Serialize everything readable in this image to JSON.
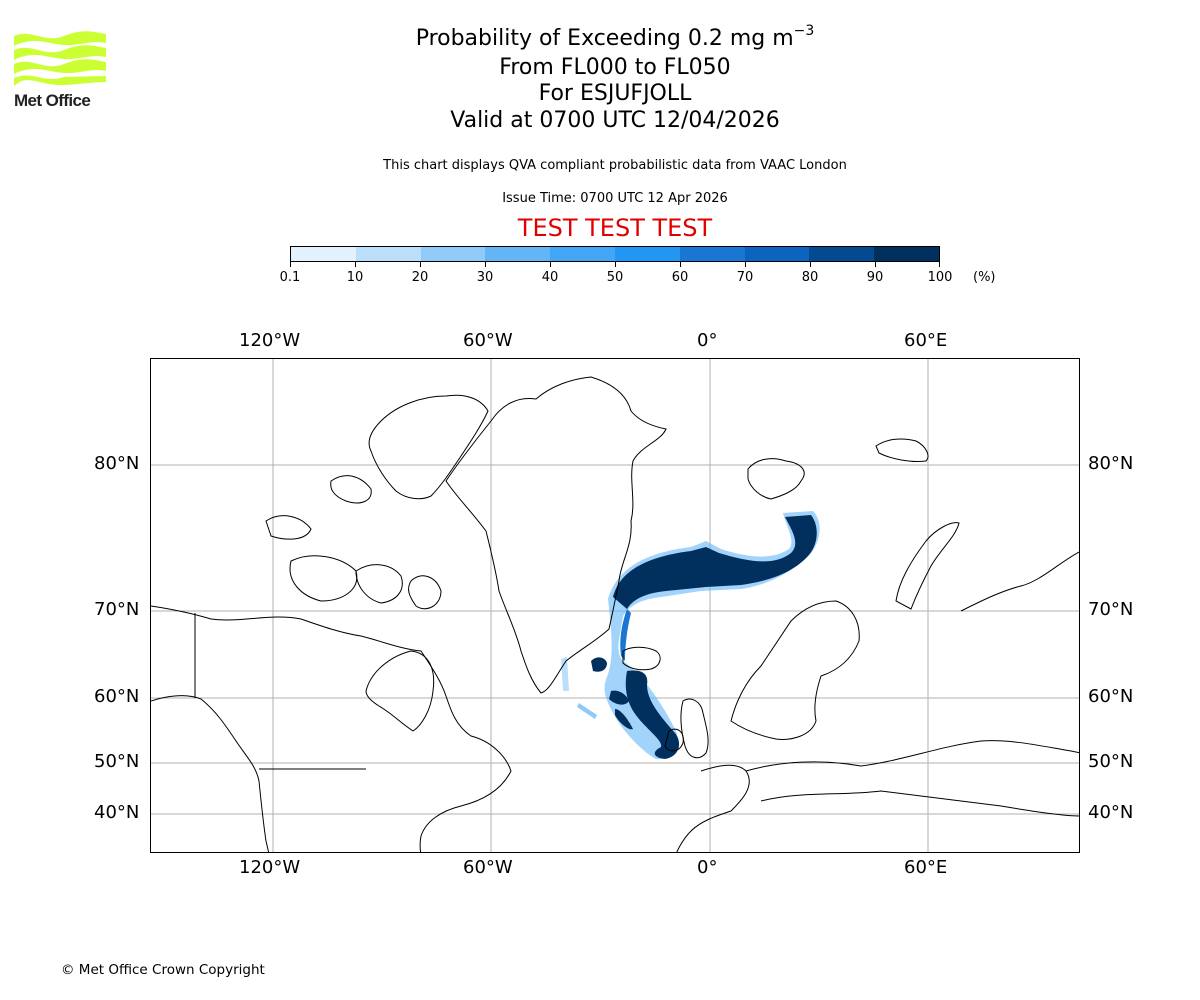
{
  "logo": {
    "text": "Met Office",
    "color": "#ccff33",
    "icon": "met-office-waves-logo"
  },
  "header": {
    "title_main": "Probability of Exceeding 0.2 mg m",
    "title_superscript": "−3",
    "line2": "From FL000 to FL050",
    "line3": "For ESJUFJOLL",
    "line4": "Valid at 0700 UTC 12/04/2026",
    "description": "This chart displays QVA compliant probabilistic data from VAAC London",
    "issue_time": "Issue Time: 0700 UTC 12 Apr 2026",
    "test_banner": "TEST TEST TEST",
    "test_banner_color": "#e00000"
  },
  "colorbar": {
    "ticks": [
      "0.1",
      "10",
      "20",
      "30",
      "40",
      "50",
      "60",
      "70",
      "80",
      "90",
      "100"
    ],
    "unit": "(%)",
    "colors": [
      "#e3f1fd",
      "#bbdefb",
      "#90caf9",
      "#64b5f6",
      "#42a5f5",
      "#2196f3",
      "#1976d2",
      "#0d63c0",
      "#044a90",
      "#02305e"
    ]
  },
  "map": {
    "projection": "Polar stereographic (North Atlantic)",
    "lon_labels": [
      "120°W",
      "60°W",
      "0°",
      "60°E"
    ],
    "lat_labels": [
      "80°N",
      "70°N",
      "60°N",
      "50°N",
      "40°N"
    ],
    "gridline_color": "#b0b0b0",
    "plume_color": "#02305e"
  },
  "footer": {
    "copyright": "© Met Office Crown Copyright"
  },
  "chart_data": {
    "type": "heatmap",
    "title": "Probability of Exceeding 0.2 mg m−3, From FL000 to FL050, For ESJUFJOLL, Valid at 0700 UTC 12/04/2026",
    "subtitle": "This chart displays QVA compliant probabilistic data from VAAC London; Issue Time: 0700 UTC 12 Apr 2026",
    "annotation": "TEST TEST TEST",
    "colorbar": {
      "label": "(%)",
      "bounds": [
        0.1,
        10,
        20,
        30,
        40,
        50,
        60,
        70,
        80,
        90,
        100
      ]
    },
    "xticks": [
      "120°W",
      "60°W",
      "0°",
      "60°E"
    ],
    "yticks": [
      "80°N",
      "70°N",
      "60°N",
      "50°N",
      "40°N"
    ],
    "grid": true,
    "regions": [
      {
        "name": "Main plume north of Iceland to Svalbard",
        "probability_range": "90-100",
        "extent": "~70-78°N, 25°W-35°E"
      },
      {
        "name": "Plume Iceland south to west of Ireland",
        "probability_range": "90-100",
        "extent": "~52-64°N, 25-10°W"
      },
      {
        "name": "Small patch SW of Iceland",
        "probability_range": "80-100",
        "extent": "~62°N, 32°W"
      },
      {
        "name": "Scattered low-probability fringes",
        "probability_range": "0.1-40",
        "extent": "Labrador Sea / N Atlantic"
      }
    ]
  }
}
